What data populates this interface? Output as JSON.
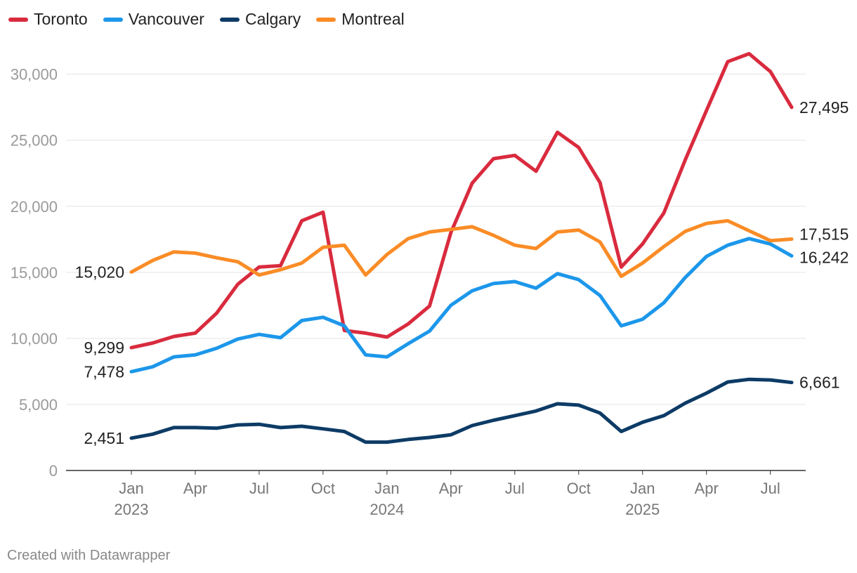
{
  "chart_data": {
    "type": "line",
    "title": "",
    "xlabel": "",
    "ylabel": "",
    "ylim": [
      0,
      32000
    ],
    "yticks": [
      0,
      5000,
      10000,
      15000,
      20000,
      25000,
      30000
    ],
    "ytick_labels": [
      "0",
      "5,000",
      "10,000",
      "15,000",
      "20,000",
      "25,000",
      "30,000"
    ],
    "x": [
      "2023-01",
      "2023-02",
      "2023-03",
      "2023-04",
      "2023-05",
      "2023-06",
      "2023-07",
      "2023-08",
      "2023-09",
      "2023-10",
      "2023-11",
      "2023-12",
      "2024-01",
      "2024-02",
      "2024-03",
      "2024-04",
      "2024-05",
      "2024-06",
      "2024-07",
      "2024-08",
      "2024-09",
      "2024-10",
      "2024-11",
      "2024-12",
      "2025-01",
      "2025-02",
      "2025-03",
      "2025-04",
      "2025-05",
      "2025-06",
      "2025-07",
      "2025-08"
    ],
    "xticks": [
      {
        "index": 0,
        "label": "Jan",
        "year": "2023"
      },
      {
        "index": 3,
        "label": "Apr",
        "year": ""
      },
      {
        "index": 6,
        "label": "Jul",
        "year": ""
      },
      {
        "index": 9,
        "label": "Oct",
        "year": ""
      },
      {
        "index": 12,
        "label": "Jan",
        "year": "2024"
      },
      {
        "index": 15,
        "label": "Apr",
        "year": ""
      },
      {
        "index": 18,
        "label": "Jul",
        "year": ""
      },
      {
        "index": 21,
        "label": "Oct",
        "year": ""
      },
      {
        "index": 24,
        "label": "Jan",
        "year": "2025"
      },
      {
        "index": 27,
        "label": "Apr",
        "year": ""
      },
      {
        "index": 30,
        "label": "Jul",
        "year": ""
      }
    ],
    "legend_position": "top-left",
    "series": [
      {
        "name": "Toronto",
        "color": "#d92b3e",
        "values": [
          9299,
          9650,
          10150,
          10400,
          11900,
          14100,
          15400,
          15500,
          18900,
          19550,
          10600,
          10400,
          10100,
          11100,
          12450,
          18000,
          21750,
          23600,
          23850,
          22650,
          25600,
          24450,
          21800,
          15400,
          17150,
          19500,
          23500,
          27250,
          30950,
          31550,
          30200,
          27495
        ],
        "start_label": "9,299",
        "end_label": "27,495"
      },
      {
        "name": "Vancouver",
        "color": "#1c97ea",
        "values": [
          7478,
          7850,
          8600,
          8750,
          9250,
          9950,
          10300,
          10050,
          11350,
          11600,
          10950,
          8750,
          8600,
          9600,
          10550,
          12500,
          13600,
          14150,
          14300,
          13800,
          14900,
          14450,
          13250,
          10950,
          11450,
          12700,
          14600,
          16200,
          17050,
          17550,
          17150,
          16242
        ],
        "start_label": "7,478",
        "end_label": "16,242"
      },
      {
        "name": "Calgary",
        "color": "#0d3b66",
        "values": [
          2451,
          2750,
          3250,
          3250,
          3200,
          3450,
          3500,
          3250,
          3350,
          3150,
          2950,
          2150,
          2150,
          2350,
          2500,
          2700,
          3400,
          3800,
          4150,
          4500,
          5050,
          4950,
          4350,
          2950,
          3650,
          4150,
          5100,
          5850,
          6700,
          6900,
          6850,
          6661
        ],
        "start_label": "2,451",
        "end_label": "6,661"
      },
      {
        "name": "Montreal",
        "color": "#fa8c26",
        "values": [
          15020,
          15900,
          16550,
          16450,
          16100,
          15800,
          14800,
          15200,
          15700,
          16900,
          17050,
          14800,
          16350,
          17550,
          18050,
          18250,
          18450,
          17800,
          17050,
          16800,
          18050,
          18200,
          17300,
          14700,
          15700,
          16950,
          18100,
          18700,
          18900,
          18150,
          17400,
          17515
        ],
        "start_label": "15,020",
        "end_label": "17,515"
      }
    ]
  },
  "footer": "Created with Datawrapper"
}
